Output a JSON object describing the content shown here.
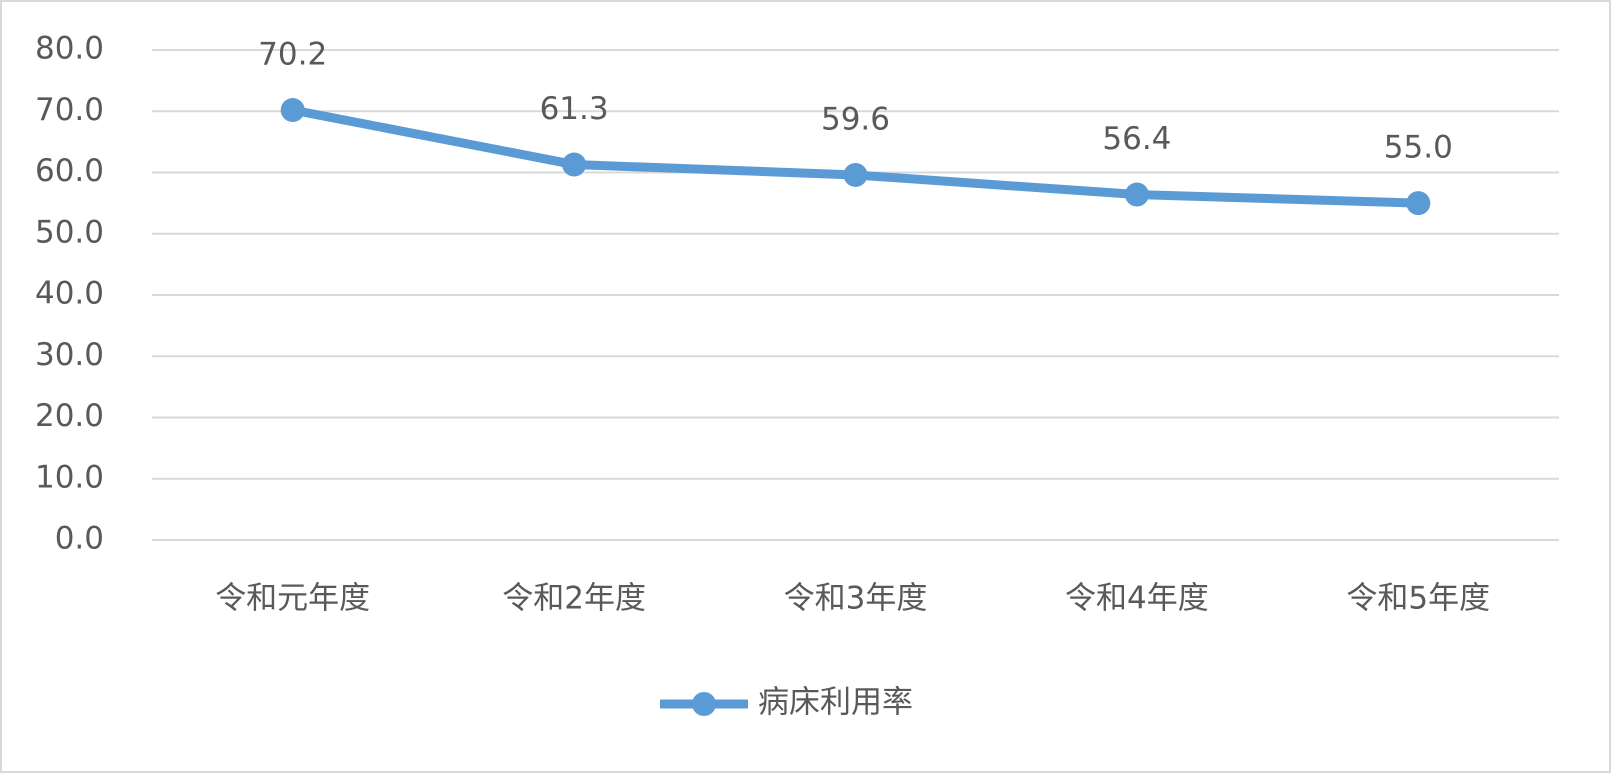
{
  "chart_data": {
    "type": "line",
    "categories": [
      "令和元年度",
      "令和2年度",
      "令和3年度",
      "令和4年度",
      "令和5年度"
    ],
    "series": [
      {
        "name": "病床利用率",
        "color": "#5b9bd5",
        "values": [
          70.2,
          61.3,
          59.6,
          56.4,
          55.0
        ],
        "value_labels": [
          "70.2",
          "61.3",
          "59.6",
          "56.4",
          "55.0"
        ]
      }
    ],
    "ylim": [
      0,
      80
    ],
    "yticks": [
      {
        "value": 0,
        "label": "0.0"
      },
      {
        "value": 10,
        "label": "10.0"
      },
      {
        "value": 20,
        "label": "20.0"
      },
      {
        "value": 30,
        "label": "30.0"
      },
      {
        "value": 40,
        "label": "40.0"
      },
      {
        "value": 50,
        "label": "50.0"
      },
      {
        "value": 60,
        "label": "60.0"
      },
      {
        "value": 70,
        "label": "70.0"
      },
      {
        "value": 80,
        "label": "80.0"
      }
    ],
    "grid": true,
    "legend": "bottom"
  }
}
